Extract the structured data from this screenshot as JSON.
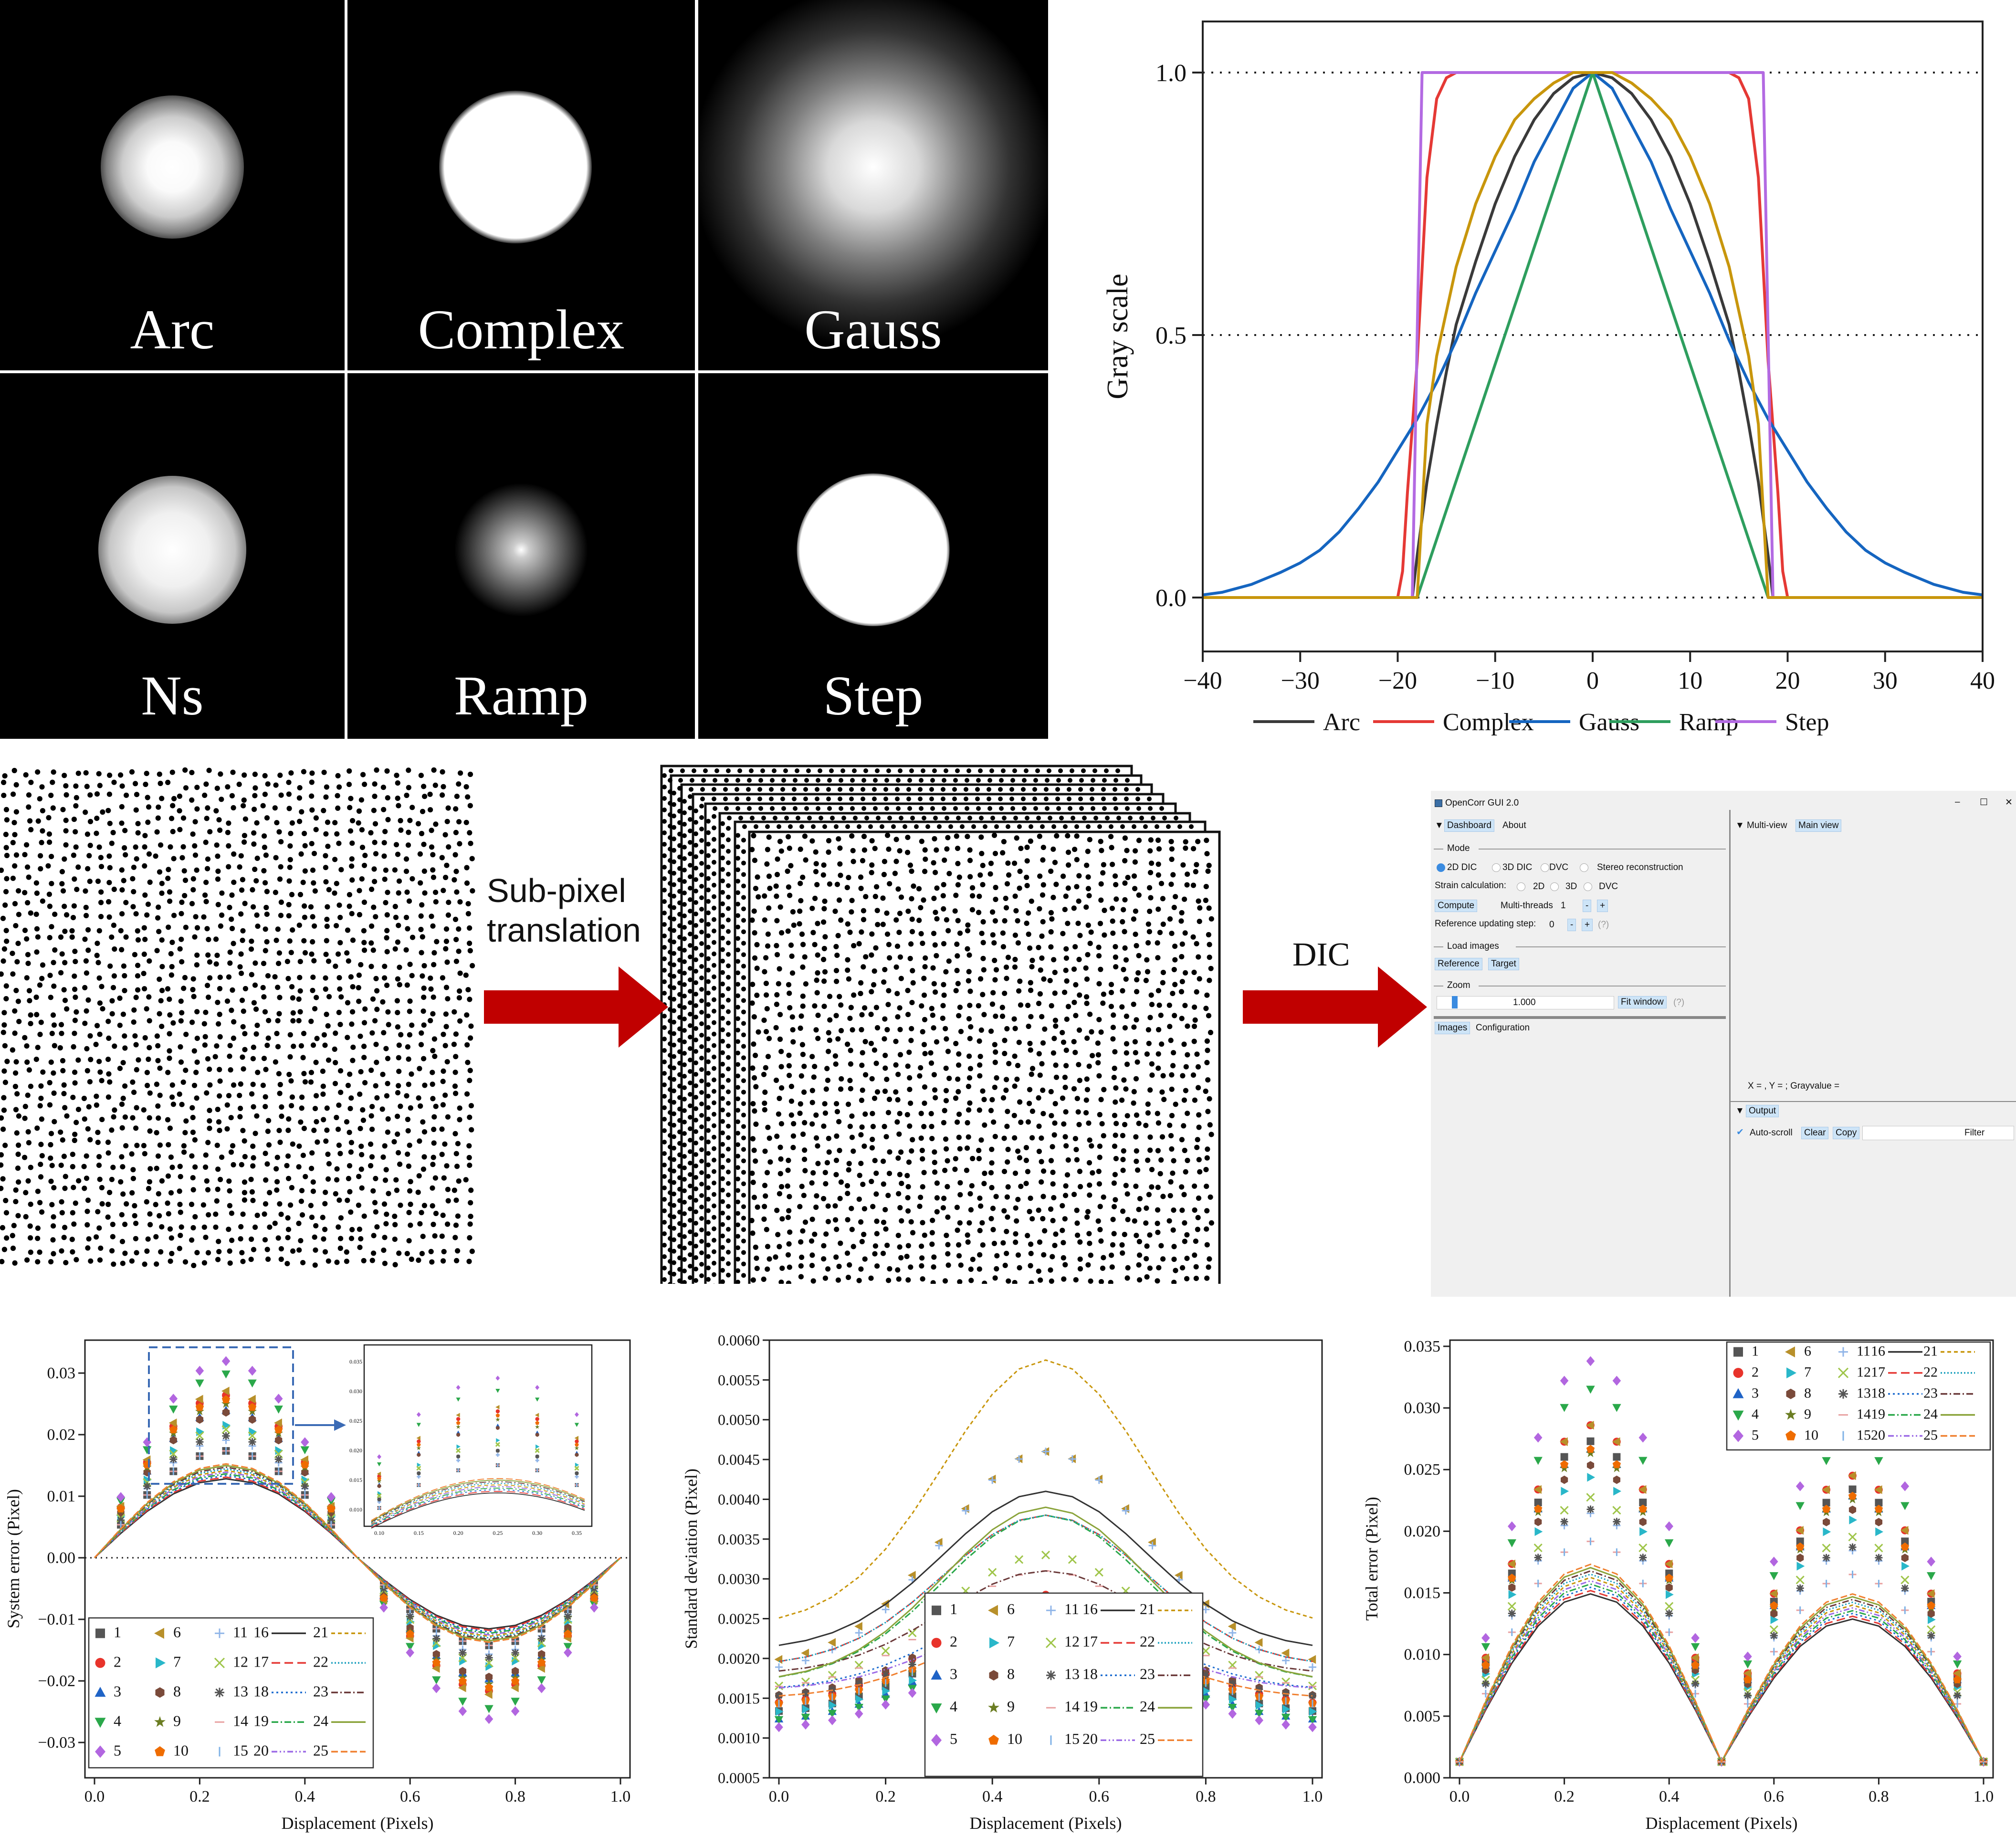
{
  "speckle_panels": [
    {
      "label": "Arc",
      "profile": "arc",
      "radius_px": 150
    },
    {
      "label": "Complex",
      "profile": "complex",
      "radius_px": 160
    },
    {
      "label": "Gauss",
      "profile": "gauss",
      "radius_px": 380
    },
    {
      "label": "Ns",
      "profile": "ns",
      "radius_px": 155
    },
    {
      "label": "Ramp",
      "profile": "ramp",
      "radius_px": 140
    },
    {
      "label": "Step",
      "profile": "step",
      "radius_px": 160
    }
  ],
  "pipeline": {
    "arrow1_label": "Sub-pixel translation",
    "arrow2_label": "DIC",
    "arrow_color": "#c00000"
  },
  "gui": {
    "title": "OpenCorr GUI 2.0",
    "window_controls": {
      "minimize": "–",
      "maximize": "☐",
      "close": "✕"
    },
    "tabs": [
      "Dashboard",
      "About"
    ],
    "mode_header": "Mode",
    "mode_options": [
      "2D DIC",
      "3D DIC",
      "DVC",
      "Stereo reconstruction"
    ],
    "strain_label": "Strain calculation:",
    "strain_options": [
      "2D",
      "3D",
      "DVC"
    ],
    "compute_label": "Compute",
    "threads_label": "Multi-threads",
    "threads_value": "1",
    "minus": "-",
    "plus": "+",
    "ref_step_label": "Reference updating step:",
    "ref_step_value": "0",
    "help": "(?)",
    "load_header": "Load images",
    "reference_btn": "Reference",
    "target_btn": "Target",
    "zoom_header": "Zoom",
    "zoom_value": "1.000",
    "fit_btn": "Fit window",
    "bottom_tabs": [
      "Images",
      "Configuration"
    ],
    "multiview_label": "Multi-view",
    "mainview_label": "Main view",
    "coords_text": "X = , Y = ; Grayvalue =",
    "output_label": "Output",
    "autoscroll_label": "Auto-scroll",
    "clear_btn": "Clear",
    "copy_btn": "Copy",
    "filter_label": "Filter"
  },
  "chart_data": [
    {
      "type": "line",
      "ylabel": "Gray scale",
      "xlim": [
        -40,
        40
      ],
      "ylim": [
        0,
        1
      ],
      "xticks": [
        "−40",
        "−30",
        "−20",
        "−10",
        "0",
        "10",
        "20",
        "30",
        "40"
      ],
      "yticks": [
        "0.0",
        "0.5",
        "1.0"
      ],
      "grid": "dotted horizontal at 0, 0.5, 1.0",
      "legend_position": "bottom",
      "series": [
        {
          "name": "Arc",
          "color": "#3a3a3a",
          "x": [
            -40,
            -18.5,
            -18,
            -17,
            -16,
            -15,
            -14,
            -12,
            -10,
            -8,
            -6,
            -4,
            -2,
            0,
            2,
            4,
            6,
            8,
            10,
            12,
            14,
            15,
            16,
            17,
            18,
            18.5,
            40
          ],
          "y": [
            0,
            0,
            0.08,
            0.22,
            0.33,
            0.43,
            0.52,
            0.64,
            0.75,
            0.84,
            0.91,
            0.96,
            0.99,
            1,
            0.99,
            0.96,
            0.91,
            0.84,
            0.75,
            0.64,
            0.52,
            0.43,
            0.33,
            0.22,
            0.08,
            0,
            0
          ]
        },
        {
          "name": "Complex",
          "color": "#e53935",
          "x": [
            -40,
            -20,
            -19.5,
            -19,
            -18,
            -17,
            -16,
            -15,
            -14,
            14,
            15,
            16,
            17,
            18,
            19,
            19.5,
            20,
            40
          ],
          "y": [
            0,
            0,
            0.05,
            0.2,
            0.45,
            0.8,
            0.95,
            0.99,
            1,
            1,
            0.99,
            0.95,
            0.8,
            0.45,
            0.2,
            0.05,
            0,
            0
          ]
        },
        {
          "name": "Gauss",
          "color": "#1565c0",
          "x": [
            -40,
            -38,
            -35,
            -32,
            -30,
            -28,
            -26,
            -24,
            -22,
            -20,
            -18,
            -16,
            -14,
            -12,
            -10,
            -8,
            -6,
            -4,
            -2,
            0,
            2,
            4,
            6,
            8,
            10,
            12,
            14,
            16,
            18,
            20,
            22,
            24,
            26,
            28,
            30,
            32,
            35,
            38,
            40
          ],
          "y": [
            0.005,
            0.01,
            0.025,
            0.048,
            0.066,
            0.09,
            0.125,
            0.17,
            0.22,
            0.28,
            0.34,
            0.41,
            0.49,
            0.58,
            0.66,
            0.74,
            0.83,
            0.9,
            0.97,
            1,
            0.97,
            0.9,
            0.83,
            0.74,
            0.66,
            0.58,
            0.49,
            0.41,
            0.34,
            0.28,
            0.22,
            0.17,
            0.125,
            0.09,
            0.066,
            0.048,
            0.025,
            0.01,
            0.005
          ]
        },
        {
          "name": "Ramp",
          "color": "#2e9e5e",
          "x": [
            -40,
            -18,
            0,
            18,
            40
          ],
          "y": [
            0,
            0,
            1,
            0,
            0
          ]
        },
        {
          "name": "Step",
          "color": "#b36ae2",
          "x": [
            -40,
            -18.5,
            -17.5,
            17.5,
            18.5,
            40
          ],
          "y": [
            0,
            0,
            1,
            1,
            0,
            0
          ]
        },
        {
          "name": "",
          "color": "#c8960c",
          "x": [
            -40,
            -18,
            -17,
            -16,
            -14,
            -12,
            -10,
            -8,
            -6,
            -4,
            -2,
            0,
            2,
            4,
            6,
            8,
            10,
            12,
            14,
            16,
            17,
            18,
            40
          ],
          "y": [
            0,
            0,
            0.33,
            0.46,
            0.63,
            0.75,
            0.84,
            0.91,
            0.95,
            0.98,
            1,
            1,
            1,
            0.98,
            0.95,
            0.91,
            0.84,
            0.75,
            0.63,
            0.46,
            0.33,
            0,
            0
          ]
        }
      ]
    },
    {
      "type": "scatter",
      "xlabel": "Displacement (Pixels)",
      "ylabel": "System error (Pixel)",
      "xlim": [
        0,
        1
      ],
      "ylim": [
        -0.035,
        0.035
      ],
      "xticks": [
        "0.0",
        "0.2",
        "0.4",
        "0.6",
        "0.8",
        "1.0"
      ],
      "yticks": [
        "−0.03",
        "−0.02",
        "−0.01",
        "0.00",
        "0.01",
        "0.02",
        "0.03"
      ],
      "x": [
        0,
        0.05,
        0.1,
        0.15,
        0.2,
        0.25,
        0.3,
        0.35,
        0.4,
        0.45,
        0.5,
        0.55,
        0.6,
        0.65,
        0.7,
        0.75,
        0.8,
        0.85,
        0.9,
        0.95,
        1
      ],
      "curve_amplitude": {
        "min": 0.0135,
        "max": 0.031
      },
      "series_count": 25,
      "legend_position": "bottom-left",
      "inset": {
        "xticks": [
          "0.10",
          "0.15",
          "0.20",
          "0.25",
          "0.30",
          "0.35"
        ],
        "yticks": [
          "0.010",
          "0.015",
          "0.020",
          "0.025",
          "0.030",
          "0.035"
        ]
      }
    },
    {
      "type": "scatter",
      "xlabel": "Displacement (Pixels)",
      "ylabel": "Standard deviation (Pixel)",
      "xlim": [
        0,
        1
      ],
      "ylim": [
        0.0005,
        0.006
      ],
      "xticks": [
        "0.0",
        "0.2",
        "0.4",
        "0.6",
        "0.8",
        "1.0"
      ],
      "yticks": [
        "0.0005",
        "0.0010",
        "0.0015",
        "0.0020",
        "0.0025",
        "0.0030",
        "0.0035",
        "0.0040",
        "0.0045",
        "0.0050",
        "0.0055",
        "0.0060"
      ],
      "x": [
        0,
        0.05,
        0.1,
        0.15,
        0.2,
        0.25,
        0.3,
        0.35,
        0.4,
        0.45,
        0.5,
        0.55,
        0.6,
        0.65,
        0.7,
        0.75,
        0.8,
        0.85,
        0.9,
        0.95,
        1
      ],
      "series_count": 25,
      "legend_position": "bottom-center",
      "highlight": {
        "series": "21",
        "peak": 0.00575
      }
    },
    {
      "type": "scatter",
      "xlabel": "Displacement (Pixels)",
      "ylabel": "Total error (Pixel)",
      "xlim": [
        0,
        1
      ],
      "ylim": [
        0,
        0.0355
      ],
      "xticks": [
        "0.0",
        "0.2",
        "0.4",
        "0.6",
        "0.8",
        "1.0"
      ],
      "yticks": [
        "0.000",
        "0.005",
        "0.010",
        "0.015",
        "0.020",
        "0.025",
        "0.030",
        "0.035"
      ],
      "x": [
        0,
        0.05,
        0.1,
        0.15,
        0.2,
        0.25,
        0.3,
        0.35,
        0.4,
        0.45,
        0.5,
        0.55,
        0.6,
        0.65,
        0.7,
        0.75,
        0.8,
        0.85,
        0.9,
        0.95,
        1
      ],
      "series_count": 25,
      "legend_position": "top-right"
    }
  ],
  "legend": {
    "marker_entries": [
      {
        "label": "1",
        "shape": "square",
        "color": "#555555"
      },
      {
        "label": "2",
        "shape": "circle",
        "color": "#e8332b"
      },
      {
        "label": "3",
        "shape": "triangle",
        "color": "#1f63c6"
      },
      {
        "label": "4",
        "shape": "triangle-down",
        "color": "#2aa84a"
      },
      {
        "label": "5",
        "shape": "diamond",
        "color": "#b266e0"
      },
      {
        "label": "6",
        "shape": "triangle-left",
        "color": "#b8902a"
      },
      {
        "label": "7",
        "shape": "triangle-right",
        "color": "#29b7c9"
      },
      {
        "label": "8",
        "shape": "hexagon",
        "color": "#7a4a3a"
      },
      {
        "label": "9",
        "shape": "star",
        "color": "#6b7d22"
      },
      {
        "label": "10",
        "shape": "pentagon",
        "color": "#ef6c00"
      },
      {
        "label": "11",
        "shape": "plus",
        "color": "#90b5e8"
      },
      {
        "label": "12",
        "shape": "cross",
        "color": "#9fc54a"
      },
      {
        "label": "13",
        "shape": "asterisk",
        "color": "#555555"
      },
      {
        "label": "14",
        "shape": "dash",
        "color": "#e8a0a0"
      },
      {
        "label": "15",
        "shape": "vbar",
        "color": "#7fb2e6"
      }
    ],
    "line_entries": [
      {
        "label": "16",
        "color": "#333333",
        "dash": ""
      },
      {
        "label": "17",
        "color": "#e53935",
        "dash": "18 9"
      },
      {
        "label": "18",
        "color": "#1e6dd0",
        "dash": "4 6"
      },
      {
        "label": "19",
        "color": "#2aa84a",
        "dash": "14 5 3 5"
      },
      {
        "label": "20",
        "color": "#9c6ae6",
        "dash": "12 5 3 5 3 5"
      },
      {
        "label": "21",
        "color": "#c8960c",
        "dash": "8 6"
      },
      {
        "label": "22",
        "color": "#1fa1bf",
        "dash": "3 4"
      },
      {
        "label": "23",
        "color": "#6b3a3a",
        "dash": "14 5 3 5"
      },
      {
        "label": "24",
        "color": "#8aa33a",
        "dash": ""
      },
      {
        "label": "25",
        "color": "#f08030",
        "dash": "14 6"
      }
    ]
  }
}
